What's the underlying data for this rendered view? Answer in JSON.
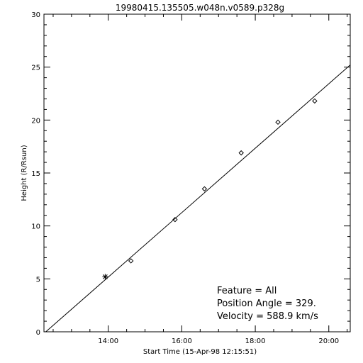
{
  "chart_data": {
    "type": "scatter",
    "title": "19980415.135505.w048n.v0589.p328g",
    "xlabel": "Start Time (15-Apr-98 12:15:51)",
    "ylabel": "Height (R/Rsun)",
    "xlim": [
      "12:15",
      "20:35"
    ],
    "ylim": [
      0,
      30
    ],
    "x_ticks": [
      "14:00",
      "16:00",
      "18:00",
      "20:00"
    ],
    "y_ticks": [
      0,
      5,
      10,
      15,
      20,
      25,
      30
    ],
    "grid": false,
    "points": [
      {
        "x": "13:55",
        "y": 5.2,
        "marker": "star"
      },
      {
        "x": "14:37",
        "y": 6.7,
        "marker": "diamond"
      },
      {
        "x": "15:49",
        "y": 10.6,
        "marker": "diamond"
      },
      {
        "x": "16:37",
        "y": 13.5,
        "marker": "diamond"
      },
      {
        "x": "17:37",
        "y": 16.9,
        "marker": "diamond"
      },
      {
        "x": "18:37",
        "y": 19.8,
        "marker": "diamond"
      },
      {
        "x": "19:37",
        "y": 21.8,
        "marker": "diamond"
      }
    ],
    "fit_line": [
      {
        "x": "12:18",
        "y": 0
      },
      {
        "x": "20:35",
        "y": 25.2
      }
    ],
    "annotations": [
      "Feature = All",
      "Position Angle =  329.",
      "Velocity =  588.9 km/s"
    ]
  }
}
